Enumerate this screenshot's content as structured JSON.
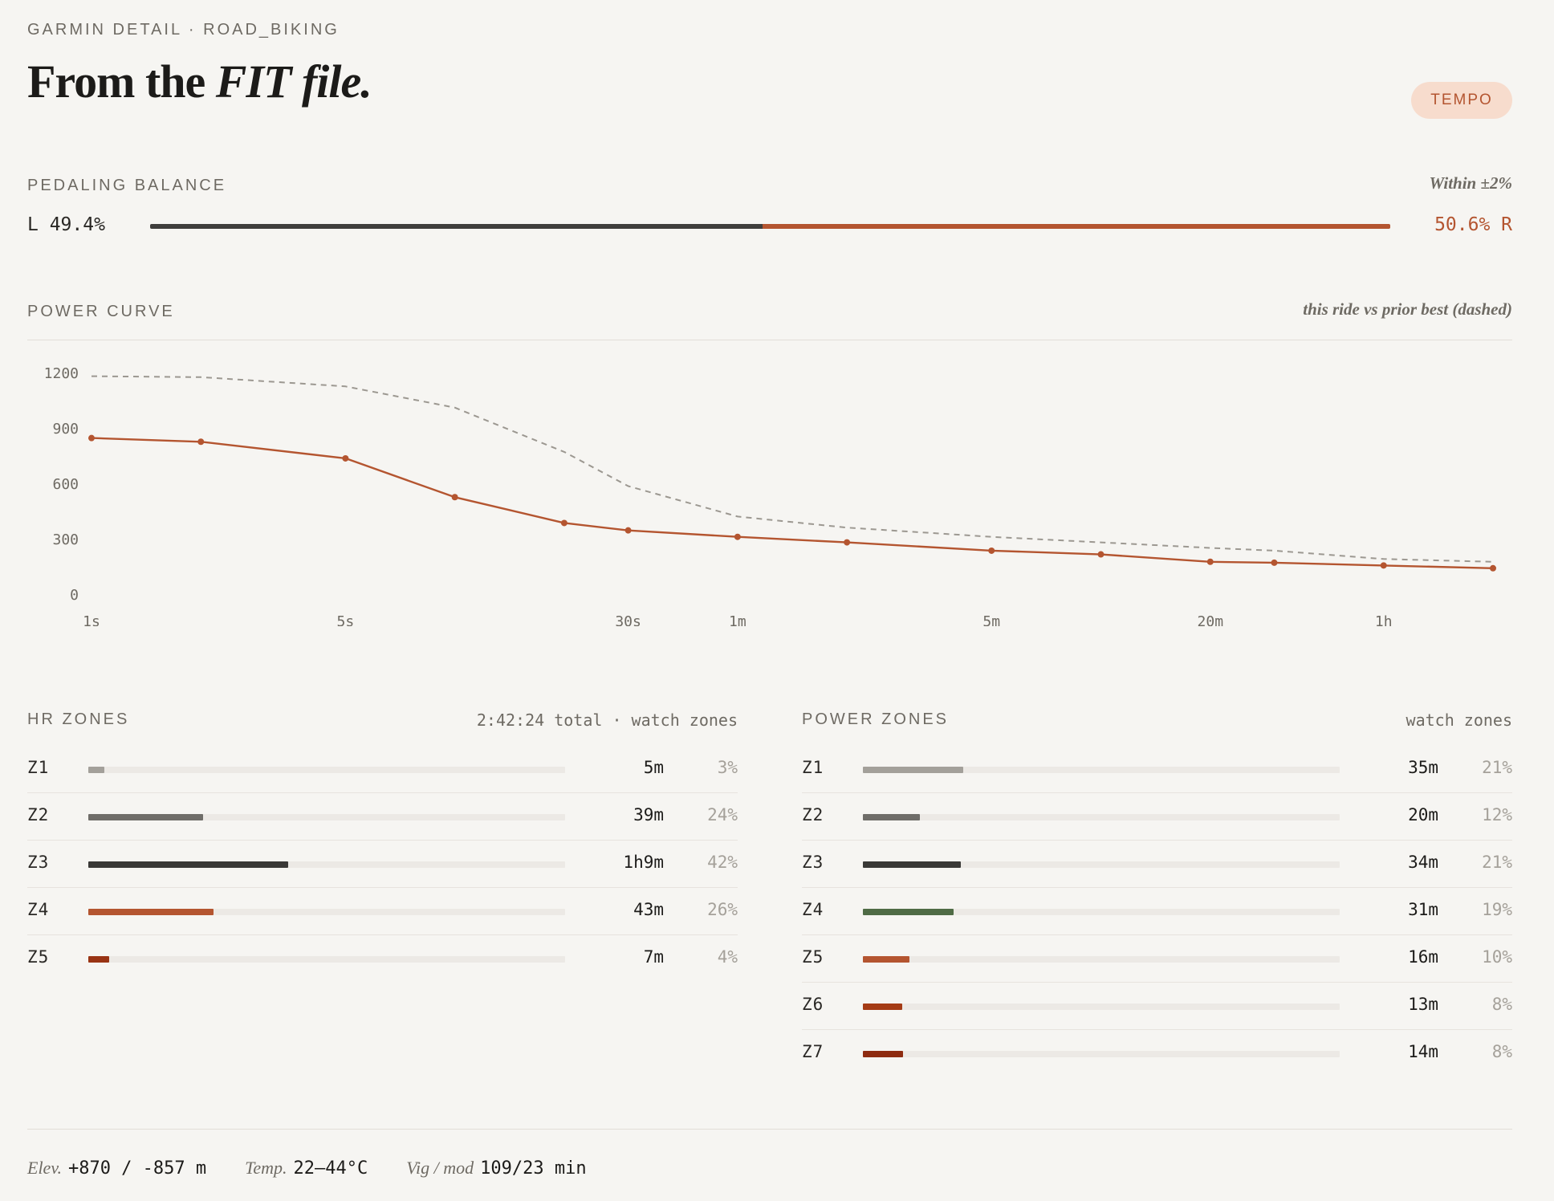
{
  "header": {
    "eyebrow": "GARMIN DETAIL · ROAD_BIKING",
    "title_prefix": "From the ",
    "title_emphasis": "FIT file.",
    "badge": "TEMPO"
  },
  "balance": {
    "title": "PEDALING BALANCE",
    "note": "Within ±2%",
    "left_label": "L 49.4%",
    "right_label": "50.6% R",
    "left_pct": 49.4,
    "right_pct": 50.6,
    "colors": {
      "left": "#3f3e3c",
      "right": "#b45530"
    }
  },
  "power_curve": {
    "title": "POWER CURVE",
    "note": "this ride vs prior best (dashed)"
  },
  "chart_data": {
    "type": "line",
    "x_scale": "log (duration)",
    "x_ticks": [
      "1s",
      "5s",
      "30s",
      "1m",
      "5m",
      "20m",
      "1h"
    ],
    "y_ticks": [
      "0",
      "300",
      "600",
      "900",
      "1200"
    ],
    "ylim": [
      0,
      1200
    ],
    "grid": false,
    "series": [
      {
        "style": "solid",
        "color": "#b45530",
        "markers": true,
        "x_seconds": [
          1,
          2,
          5,
          10,
          20,
          30,
          60,
          120,
          300,
          600,
          1200,
          1800,
          3600,
          7200
        ],
        "values": [
          845,
          825,
          735,
          525,
          385,
          345,
          310,
          280,
          235,
          215,
          175,
          170,
          155,
          140
        ]
      },
      {
        "style": "dashed",
        "color": "#9c9891",
        "markers": false,
        "x_seconds": [
          1,
          2,
          5,
          10,
          20,
          30,
          60,
          120,
          300,
          600,
          1200,
          1800,
          3600,
          7200
        ],
        "values": [
          1180,
          1175,
          1125,
          1010,
          770,
          585,
          420,
          360,
          310,
          280,
          250,
          235,
          190,
          175
        ]
      }
    ]
  },
  "hr_zones": {
    "title": "HR ZONES",
    "meta": "2:42:24 total · watch zones",
    "zones": [
      {
        "name": "Z1",
        "time": "5m",
        "pct": "3%",
        "fraction": 0.033,
        "color": "#a3a09a"
      },
      {
        "name": "Z2",
        "time": "39m",
        "pct": "24%",
        "fraction": 0.24,
        "color": "#6f6d69"
      },
      {
        "name": "Z3",
        "time": "1h9m",
        "pct": "42%",
        "fraction": 0.42,
        "color": "#3a3937"
      },
      {
        "name": "Z4",
        "time": "43m",
        "pct": "26%",
        "fraction": 0.262,
        "color": "#b45530"
      },
      {
        "name": "Z5",
        "time": "7m",
        "pct": "4%",
        "fraction": 0.043,
        "color": "#993414"
      }
    ]
  },
  "power_zones": {
    "title": "POWER ZONES",
    "meta": "watch zones",
    "zones": [
      {
        "name": "Z1",
        "time": "35m",
        "pct": "21%",
        "fraction": 0.21,
        "color": "#a3a09a"
      },
      {
        "name": "Z2",
        "time": "20m",
        "pct": "12%",
        "fraction": 0.12,
        "color": "#6f6d69"
      },
      {
        "name": "Z3",
        "time": "34m",
        "pct": "21%",
        "fraction": 0.206,
        "color": "#3a3937"
      },
      {
        "name": "Z4",
        "time": "31m",
        "pct": "19%",
        "fraction": 0.19,
        "color": "#4f6b45"
      },
      {
        "name": "Z5",
        "time": "16m",
        "pct": "10%",
        "fraction": 0.098,
        "color": "#b45530"
      },
      {
        "name": "Z6",
        "time": "13m",
        "pct": "8%",
        "fraction": 0.082,
        "color": "#a53c16"
      },
      {
        "name": "Z7",
        "time": "14m",
        "pct": "8%",
        "fraction": 0.084,
        "color": "#8e2b10"
      }
    ]
  },
  "footer": [
    {
      "key": "Elev.",
      "value": "+870 / -857 m"
    },
    {
      "key": "Temp.",
      "value": "22–44°C"
    },
    {
      "key": "Vig / mod",
      "value": "109/23 min"
    }
  ]
}
